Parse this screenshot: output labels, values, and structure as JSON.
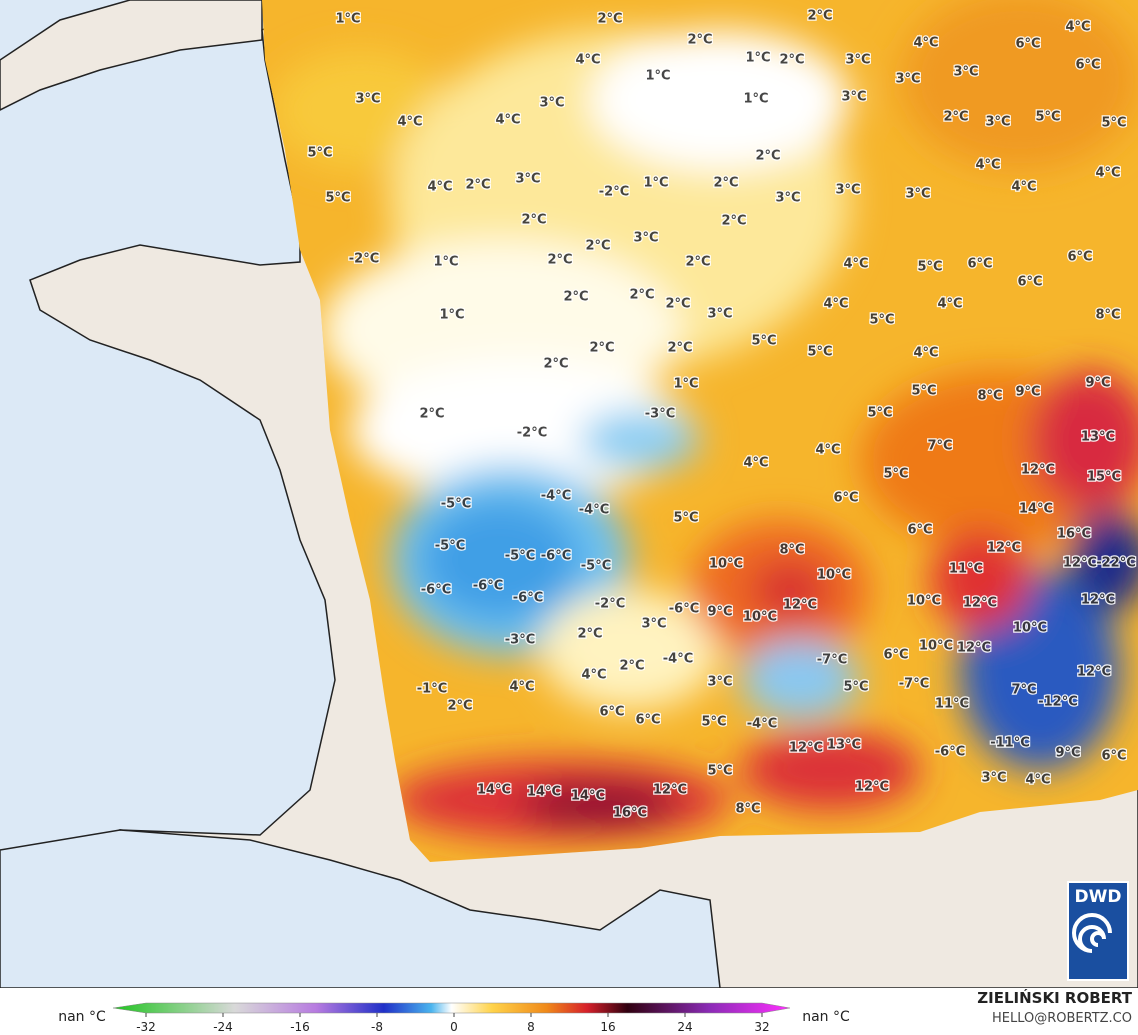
{
  "map": {
    "labels": [
      "3°C",
      "4°C",
      "4°C",
      "3°C",
      "5°C",
      "5°C",
      "4°C",
      "2°C",
      "3°C",
      "2°C",
      "2°C",
      "1°C",
      "1°C",
      "2°C",
      "3°C",
      "1°C",
      "2°C",
      "-2°C",
      "1°C",
      "2°C",
      "3°C",
      "3°C",
      "3°C",
      "2°C",
      "2°C",
      "2°C",
      "3°C",
      "2°C",
      "2°C",
      "-2°C",
      "1°C",
      "2°C",
      "2°C",
      "2°C",
      "3°C",
      "1°C",
      "2°C",
      "2°C",
      "2°C",
      "1°C",
      "2°C",
      "-2°C",
      "-3°C",
      "-5°C",
      "-4°C",
      "-4°C",
      "-5°C",
      "-5°C",
      "-6°C",
      "-5°C",
      "-6°C",
      "-6°C",
      "-6°C",
      "-2°C",
      "-3°C",
      "2°C",
      "3°C",
      "-6°C",
      "-4°C",
      "2°C",
      "4°C",
      "4°C",
      "-1°C",
      "2°C",
      "6°C",
      "6°C",
      "5°C",
      "-4°C",
      "3°C",
      "5°C",
      "4°C",
      "4°C",
      "5°C",
      "6°C",
      "7°C",
      "10°C",
      "9°C",
      "8°C",
      "10°C",
      "12°C",
      "10°C",
      "-7°C",
      "5°C",
      "6°C",
      "10°C",
      "10°C",
      "12°C",
      "11°C",
      "12°C",
      "12°C",
      "-7°C",
      "11°C",
      "7°C",
      "-12°C",
      "-11°C",
      "9°C",
      "6°C",
      "12°C",
      "12°C",
      "10°C",
      "14°C",
      "16°C",
      "12°C",
      "-22°C",
      "12°C",
      "13°C",
      "15°C",
      "8°C",
      "9°C",
      "5°C",
      "5°C",
      "4°C",
      "5°C",
      "5°C",
      "4°C",
      "5°C",
      "4°C",
      "5°C",
      "6°C",
      "6°C",
      "6°C",
      "8°C",
      "9°C",
      "4°C",
      "6°C",
      "12°C",
      "13°C",
      "12°C",
      "5°C",
      "8°C",
      "12°C",
      "14°C",
      "14°C",
      "14°C",
      "16°C",
      "-6°C",
      "3°C",
      "4°C",
      "6°C",
      "4°C",
      "6°C",
      "4°C",
      "3°C",
      "3°C",
      "3°C",
      "2°C",
      "3°C",
      "5°C",
      "5°C",
      "4°C",
      "4°C",
      "4°C",
      "4°C",
      "2°C",
      "1°C"
    ],
    "colorbar": {
      "ticks": [
        -32,
        -24,
        -16,
        -8,
        0,
        8,
        16,
        24,
        32
      ],
      "min_label": "nan °C",
      "max_label": "nan °C"
    },
    "credit": {
      "author": "ZIELIŃSKI ROBERT",
      "email": "HELLO@ROBERTZ.CO"
    },
    "logo": "DWD"
  }
}
